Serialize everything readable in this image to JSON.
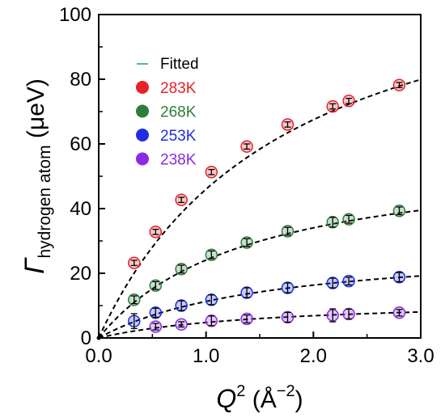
{
  "chart_data": {
    "type": "scatter",
    "x_label": {
      "main": "Q",
      "sup": "2",
      "unit_open": " (Å",
      "unit_sup": "−2",
      "unit_close": ")"
    },
    "y_label": {
      "main": "Γ",
      "sub": "hydrogen atom",
      "unit": " (μeV)"
    },
    "xlim": [
      0,
      3.0
    ],
    "ylim": [
      0,
      100
    ],
    "x_ticks": [
      0,
      1,
      2,
      3
    ],
    "x_tick_labels": [
      "0.0",
      "1.0",
      "2.0",
      "3.0"
    ],
    "y_ticks": [
      0,
      20,
      40,
      60,
      80,
      100
    ],
    "y_tick_labels": [
      "0",
      "20",
      "40",
      "60",
      "80",
      "100"
    ],
    "grid": false,
    "legend": {
      "position": "top-left",
      "fit_label": "Fitted",
      "fit_color": "#1a9a8a"
    },
    "series": [
      {
        "name": "283K",
        "color": "#e8202a",
        "x": [
          0.33,
          0.53,
          0.77,
          1.05,
          1.38,
          1.76,
          2.18,
          2.33,
          2.8
        ],
        "y": [
          23.2,
          32.8,
          42.7,
          51.3,
          59.2,
          66.0,
          71.6,
          73.3,
          78.2
        ],
        "err": [
          0.8,
          0.8,
          0.8,
          0.8,
          0.8,
          0.8,
          0.8,
          0.8,
          0.8
        ]
      },
      {
        "name": "268K",
        "color": "#2e7d3a",
        "x": [
          0.33,
          0.53,
          0.77,
          1.05,
          1.38,
          1.76,
          2.18,
          2.33,
          2.8
        ],
        "y": [
          11.8,
          16.2,
          21.3,
          25.7,
          29.5,
          33.0,
          35.8,
          36.7,
          39.3
        ],
        "err": [
          1.2,
          1.2,
          1.2,
          1.2,
          1.2,
          1.2,
          1.5,
          1.2,
          1.2
        ]
      },
      {
        "name": "253K",
        "color": "#1f2fe0",
        "x": [
          0.33,
          0.53,
          0.77,
          1.05,
          1.38,
          1.76,
          2.18,
          2.33,
          2.8
        ],
        "y": [
          5.2,
          7.8,
          10.0,
          11.8,
          14.0,
          15.5,
          17.0,
          17.6,
          18.8
        ],
        "err": [
          2.3,
          1.4,
          1.5,
          1.5,
          1.5,
          1.5,
          1.5,
          1.2,
          1.4
        ]
      },
      {
        "name": "238K",
        "color": "#8a2be2",
        "x": [
          0.53,
          0.77,
          1.05,
          1.38,
          1.76,
          2.18,
          2.33,
          2.8
        ],
        "y": [
          3.5,
          4.2,
          5.3,
          5.9,
          6.4,
          7.0,
          7.4,
          7.8
        ],
        "err": [
          1.0,
          0.8,
          1.5,
          1.2,
          1.5,
          2.0,
          1.5,
          1.0
        ]
      }
    ],
    "fits": [
      {
        "series": "283K",
        "model": "a*x/(1+b*x)",
        "a": 72.2,
        "b": 0.57
      },
      {
        "series": "268K",
        "model": "a*x/(1+b*x)",
        "a": 41.2,
        "b": 0.71
      },
      {
        "series": "253K",
        "model": "a*x/(1+b*x)",
        "a": 18.3,
        "b": 0.62
      },
      {
        "series": "238K",
        "model": "a*x/(1+b*x)",
        "a": 7.9,
        "b": 0.65
      }
    ]
  }
}
